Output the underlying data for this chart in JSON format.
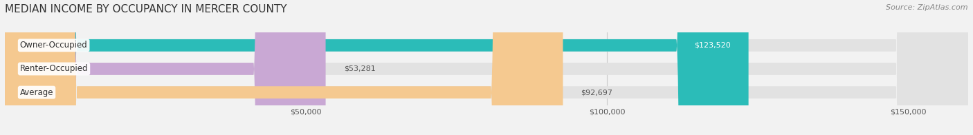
{
  "title": "MEDIAN INCOME BY OCCUPANCY IN MERCER COUNTY",
  "source": "Source: ZipAtlas.com",
  "categories": [
    "Owner-Occupied",
    "Renter-Occupied",
    "Average"
  ],
  "values": [
    123520,
    53281,
    92697
  ],
  "bar_colors": [
    "#2bbcb8",
    "#c9a8d4",
    "#f5c990"
  ],
  "value_labels": [
    "$123,520",
    "$53,281",
    "$92,697"
  ],
  "xlim": [
    0,
    160000
  ],
  "xticks": [
    50000,
    100000,
    150000
  ],
  "xtick_labels": [
    "$50,000",
    "$100,000",
    "$150,000"
  ],
  "background_color": "#f2f2f2",
  "bar_background_color": "#e2e2e2",
  "title_fontsize": 11,
  "source_fontsize": 8,
  "bar_height": 0.52,
  "figsize": [
    14.06,
    1.96
  ],
  "dpi": 100
}
